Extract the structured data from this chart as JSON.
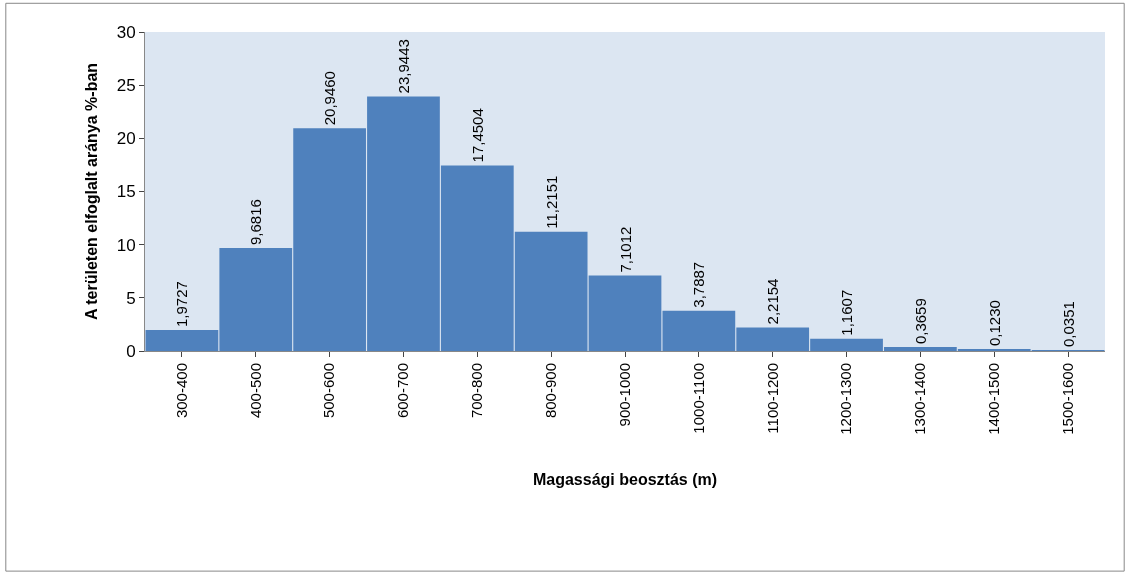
{
  "chart_data": {
    "type": "bar",
    "xlabel": "Magassági beosztás (m)",
    "ylabel": "A területen elfoglalt aránya %-ban",
    "categories": [
      "300-400",
      "400-500",
      "500-600",
      "600-700",
      "700-800",
      "800-900",
      "900-1000",
      "1000-1100",
      "1100-1200",
      "1200-1300",
      "1300-1400",
      "1400-1500",
      "1500-1600"
    ],
    "values": [
      1.9727,
      9.6816,
      20.946,
      23.9443,
      17.4504,
      11.2151,
      7.1012,
      3.7887,
      2.2154,
      1.1607,
      0.3659,
      0.123,
      0.0351
    ],
    "value_labels": [
      "1,9727",
      "9,6816",
      "20,9460",
      "23,9443",
      "17,4504",
      "11,2151",
      "7,1012",
      "3,7887",
      "2,2154",
      "1,1607",
      "0,3659",
      "0,1230",
      "0,0351"
    ],
    "color": "#4f81bd",
    "ylim": [
      0,
      30
    ],
    "yticks": [
      0,
      5,
      10,
      15,
      20,
      25,
      30
    ],
    "grid": false,
    "legend": false
  }
}
